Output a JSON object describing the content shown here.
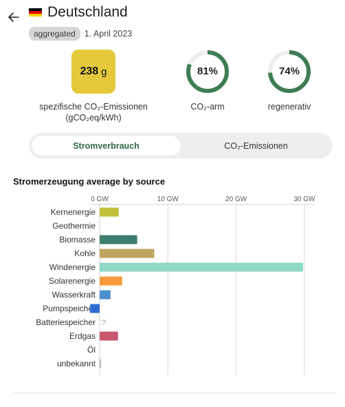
{
  "header": {
    "title": "Deutschland",
    "badge": "aggregated",
    "date": "1. April 2023"
  },
  "metrics": {
    "intensity_value": "238",
    "intensity_unit": "g",
    "intensity_label_1": "spezifische CO₂-Emissionen",
    "intensity_label_2": "(gCO₂eq/kWh)",
    "lowcarbon_text": "81%",
    "lowcarbon_value": 81,
    "lowcarbon_label": "CO₂-arm",
    "renewable_text": "74%",
    "renewable_value": 74,
    "renewable_label": "regenerativ"
  },
  "toggle": {
    "active_label": "Stromverbrauch",
    "inactive_label": "CO₂-Emissionen"
  },
  "colors": {
    "ring": "#3e7d53",
    "ring_track": "#eeeeee",
    "intensity_box": "#e5c93d",
    "flag_black": "#000000",
    "flag_red": "#dd0000",
    "flag_gold": "#ffce00"
  },
  "chart_data": {
    "type": "bar",
    "orientation": "horizontal",
    "title": "Stromerzeugung average by source",
    "unit": "GW",
    "xlim": [
      0,
      32
    ],
    "ticks": [
      {
        "value": 0,
        "label": "0 GW"
      },
      {
        "value": 10,
        "label": "10 GW"
      },
      {
        "value": 20,
        "label": "20 GW"
      },
      {
        "value": 30,
        "label": "30 GW"
      }
    ],
    "bars": [
      {
        "label": "Kernenergie",
        "value": 2.8,
        "color": "#c2c13b"
      },
      {
        "label": "Geothermie",
        "value": 0,
        "color": "#aaaaaa"
      },
      {
        "label": "Biomasse",
        "value": 5.5,
        "color": "#3e7d6d"
      },
      {
        "label": "Kohle",
        "value": 8.0,
        "color": "#c1a463"
      },
      {
        "label": "Windenergie",
        "value": 29.8,
        "color": "#8fd8c6"
      },
      {
        "label": "Solarenergie",
        "value": 3.3,
        "color": "#f79a3e"
      },
      {
        "label": "Wasserkraft",
        "value": 1.6,
        "color": "#4c8fcd"
      },
      {
        "label": "Pumpspeicher",
        "value": -1.4,
        "color": "#2f6cd1"
      },
      {
        "label": "Batteriespeicher",
        "value": null,
        "missing": "?",
        "color": "#999999"
      },
      {
        "label": "Erdgas",
        "value": 2.7,
        "color": "#c8576e"
      },
      {
        "label": "Öl",
        "value": 0,
        "color": "#aaaaaa"
      },
      {
        "label": "unbekannt",
        "value": 0.2,
        "color": "#bbbbbb"
      }
    ]
  }
}
